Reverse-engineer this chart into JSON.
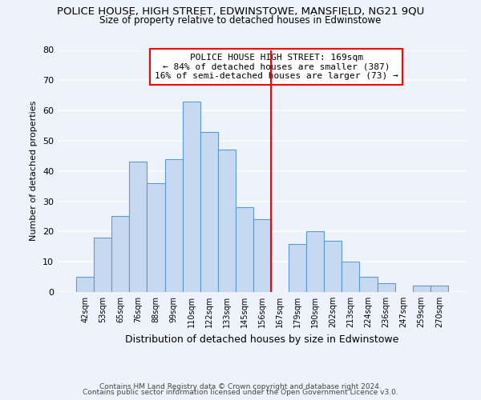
{
  "title": "POLICE HOUSE, HIGH STREET, EDWINSTOWE, MANSFIELD, NG21 9QU",
  "subtitle": "Size of property relative to detached houses in Edwinstowe",
  "xlabel": "Distribution of detached houses by size in Edwinstowe",
  "ylabel": "Number of detached properties",
  "footer_line1": "Contains HM Land Registry data © Crown copyright and database right 2024.",
  "footer_line2": "Contains public sector information licensed under the Open Government Licence v3.0.",
  "bin_labels": [
    "42sqm",
    "53sqm",
    "65sqm",
    "76sqm",
    "88sqm",
    "99sqm",
    "110sqm",
    "122sqm",
    "133sqm",
    "145sqm",
    "156sqm",
    "167sqm",
    "179sqm",
    "190sqm",
    "202sqm",
    "213sqm",
    "224sqm",
    "236sqm",
    "247sqm",
    "259sqm",
    "270sqm"
  ],
  "bar_heights": [
    5,
    18,
    25,
    43,
    36,
    44,
    63,
    53,
    47,
    28,
    24,
    0,
    16,
    20,
    17,
    10,
    5,
    3,
    0,
    2,
    2
  ],
  "bar_color": "#c6d9f0",
  "bar_edge_color": "#5b9bd5",
  "vline_x_index": 11,
  "vline_color": "red",
  "annotation_title": "POLICE HOUSE HIGH STREET: 169sqm",
  "annotation_line2": "← 84% of detached houses are smaller (387)",
  "annotation_line3": "16% of semi-detached houses are larger (73) →",
  "ylim": [
    0,
    80
  ],
  "yticks": [
    0,
    10,
    20,
    30,
    40,
    50,
    60,
    70,
    80
  ],
  "background_color": "#eef2fa",
  "grid_color": "white"
}
